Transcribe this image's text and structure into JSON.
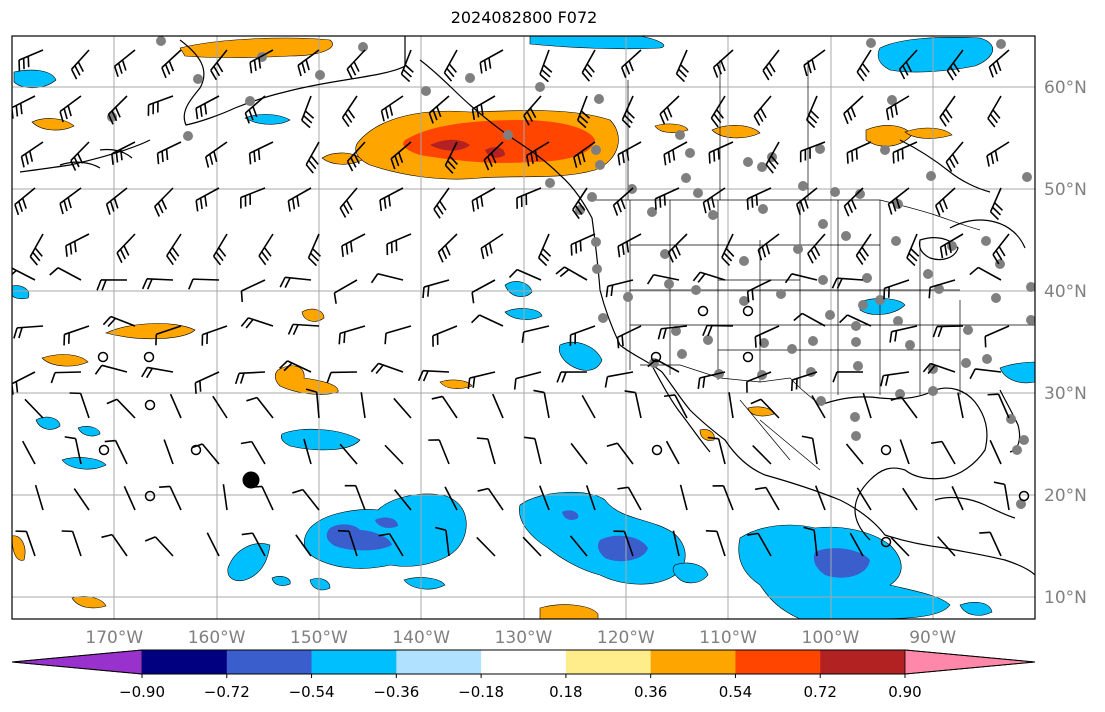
{
  "title": "2024082800 F072",
  "lon_labels": [
    {
      "lon": -170,
      "label": "170°W"
    },
    {
      "lon": -160,
      "label": "160°W"
    },
    {
      "lon": -150,
      "label": "150°W"
    },
    {
      "lon": -140,
      "label": "140°W"
    },
    {
      "lon": -130,
      "label": "130°W"
    },
    {
      "lon": -120,
      "label": "120°W"
    },
    {
      "lon": -110,
      "label": "110°W"
    },
    {
      "lon": -100,
      "label": "100°W"
    },
    {
      "lon": -90,
      "label": "90°W"
    }
  ],
  "lat_labels": [
    {
      "lat": 60,
      "label": "60°N"
    },
    {
      "lat": 50,
      "label": "50°N"
    },
    {
      "lat": 40,
      "label": "40°N"
    },
    {
      "lat": 30,
      "label": "30°N"
    },
    {
      "lat": 20,
      "label": "20°N"
    },
    {
      "lat": 10,
      "label": "10°N"
    }
  ],
  "colorbar": {
    "ticks": [
      "−0.90",
      "−0.72",
      "−0.54",
      "−0.36",
      "−0.18",
      "0.18",
      "0.36",
      "0.54",
      "0.72",
      "0.90"
    ],
    "colors": [
      "#9932cc",
      "#000080",
      "#3a5fcd",
      "#00bfff",
      "#b0e2ff",
      "#ffffff",
      "#ffec8b",
      "#ffa500",
      "#ff4500",
      "#b22222",
      "#ff88aa"
    ]
  }
}
